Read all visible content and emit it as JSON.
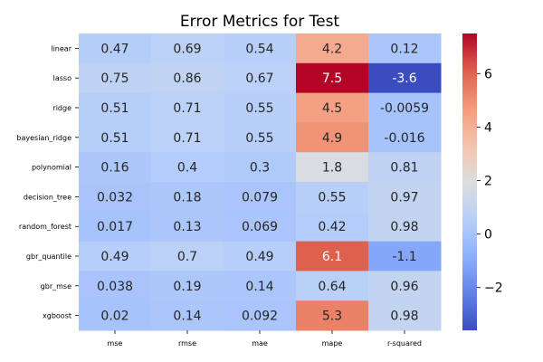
{
  "chart_data": {
    "type": "heatmap",
    "title": "Error Metrics for Test",
    "rows": [
      "linear",
      "lasso",
      "ridge",
      "bayesian_ridge",
      "polynomial",
      "decision_tree",
      "random_forest",
      "gbr_quantile",
      "gbr_mse",
      "xgboost"
    ],
    "columns": [
      "mse",
      "rmse",
      "mae",
      "mape",
      "r-squared"
    ],
    "values": [
      [
        0.47,
        0.69,
        0.54,
        4.2,
        0.12
      ],
      [
        0.75,
        0.86,
        0.67,
        7.5,
        -3.6
      ],
      [
        0.51,
        0.71,
        0.55,
        4.5,
        -0.0059
      ],
      [
        0.51,
        0.71,
        0.55,
        4.9,
        -0.016
      ],
      [
        0.16,
        0.4,
        0.3,
        1.8,
        0.81
      ],
      [
        0.032,
        0.18,
        0.079,
        0.55,
        0.97
      ],
      [
        0.017,
        0.13,
        0.069,
        0.42,
        0.98
      ],
      [
        0.49,
        0.7,
        0.49,
        6.1,
        -1.1
      ],
      [
        0.038,
        0.19,
        0.14,
        0.64,
        0.96
      ],
      [
        0.02,
        0.14,
        0.092,
        5.3,
        0.98
      ]
    ],
    "labels": [
      [
        "0.47",
        "0.69",
        "0.54",
        "4.2",
        "0.12"
      ],
      [
        "0.75",
        "0.86",
        "0.67",
        "7.5",
        "-3.6"
      ],
      [
        "0.51",
        "0.71",
        "0.55",
        "4.5",
        "-0.0059"
      ],
      [
        "0.51",
        "0.71",
        "0.55",
        "4.9",
        "-0.016"
      ],
      [
        "0.16",
        "0.4",
        "0.3",
        "1.8",
        "0.81"
      ],
      [
        "0.032",
        "0.18",
        "0.079",
        "0.55",
        "0.97"
      ],
      [
        "0.017",
        "0.13",
        "0.069",
        "0.42",
        "0.98"
      ],
      [
        "0.49",
        "0.7",
        "0.49",
        "6.1",
        "-1.1"
      ],
      [
        "0.038",
        "0.19",
        "0.14",
        "0.64",
        "0.96"
      ],
      [
        "0.02",
        "0.14",
        "0.092",
        "5.3",
        "0.98"
      ]
    ],
    "colormap": "coolwarm",
    "colorbar": {
      "vmin": -3.6,
      "vmax": 7.5,
      "ticks": [
        -2,
        0,
        2,
        4,
        6
      ],
      "tick_labels": [
        "−2",
        "0",
        "2",
        "4",
        "6"
      ]
    }
  }
}
